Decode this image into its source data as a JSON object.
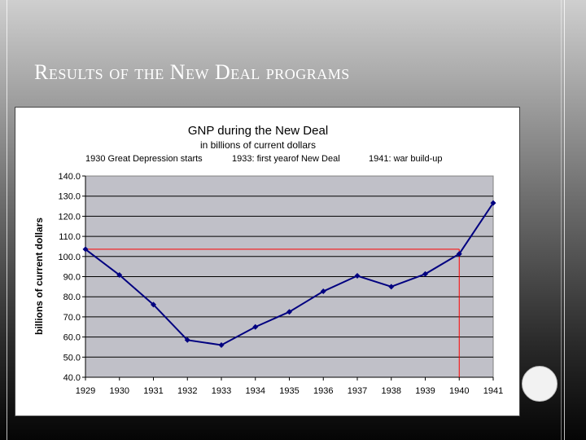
{
  "slide": {
    "title": "Results of the New Deal programs"
  },
  "colors": {
    "plot_background": "#c0c0c8",
    "series_line": "#000080",
    "reference_line": "#ff0000",
    "gridline": "#000000"
  },
  "chart_data": {
    "type": "line",
    "title": "GNP during the New Deal",
    "subtitle": "in billions of current dollars",
    "annotations": [
      "1930 Great Depression starts",
      "1933: first yearof New Deal",
      "1941: war build-up"
    ],
    "ylabel": "billions of current dollars",
    "xlabel": "",
    "ylim": [
      40,
      140
    ],
    "ytick_step": 10,
    "ytick_labels": [
      "40.0",
      "50.0",
      "60.0",
      "70.0",
      "80.0",
      "90.0",
      "100.0",
      "110.0",
      "120.0",
      "130.0",
      "140.0"
    ],
    "categories": [
      "1929",
      "1930",
      "1931",
      "1932",
      "1933",
      "1934",
      "1935",
      "1936",
      "1937",
      "1938",
      "1939",
      "1940",
      "1941"
    ],
    "series": [
      {
        "values": [
          103.6,
          90.8,
          76.1,
          58.5,
          56.0,
          65.0,
          72.5,
          82.7,
          90.4,
          85.0,
          91.3,
          101.3,
          126.6
        ]
      }
    ],
    "reference_lines": {
      "horizontal_y": 103.6,
      "vertical_x": "1940"
    },
    "grid": true,
    "legend": "none"
  }
}
